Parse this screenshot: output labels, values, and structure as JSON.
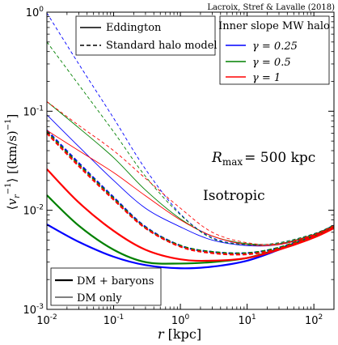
{
  "chart_data": {
    "type": "line",
    "credit": "Lacroix, Stref & Lavalle (2018)",
    "xlabel": "r [kpc]",
    "ylabel": "⟨v_r^{-1}⟩ [(km/s)^{-1}]",
    "xscale": "log",
    "yscale": "log",
    "xlim": [
      0.01,
      200
    ],
    "ylim": [
      0.001,
      1
    ],
    "x_ticks": [
      {
        "value": 0.01,
        "mantissa": "10",
        "exp": "-2"
      },
      {
        "value": 0.1,
        "mantissa": "10",
        "exp": "-1"
      },
      {
        "value": 1,
        "mantissa": "10",
        "exp": "0"
      },
      {
        "value": 10,
        "mantissa": "10",
        "exp": "1"
      },
      {
        "value": 100,
        "mantissa": "10",
        "exp": "2"
      }
    ],
    "y_ticks": [
      {
        "value": 0.001,
        "mantissa": "10",
        "exp": "-3"
      },
      {
        "value": 0.01,
        "mantissa": "10",
        "exp": "-2"
      },
      {
        "value": 0.1,
        "mantissa": "10",
        "exp": "-1"
      },
      {
        "value": 1,
        "mantissa": "10",
        "exp": "0"
      }
    ],
    "annotations": {
      "rmax": "R",
      "rmax_sub": "max",
      "rmax_value": "= 500 kpc",
      "model": "Isotropic"
    },
    "legend_method": {
      "placement": "top-left",
      "entries": [
        {
          "label": "Eddington",
          "linestyle": "solid"
        },
        {
          "label": "Standard halo model",
          "linestyle": "dashed"
        }
      ]
    },
    "legend_gamma": {
      "placement": "top-right",
      "title": "Inner slope MW halo",
      "entries": [
        {
          "label": "γ = 0.25",
          "color": "#0000ff"
        },
        {
          "label": "γ = 0.5",
          "color": "#008000"
        },
        {
          "label": "γ = 1",
          "color": "#ff0000"
        }
      ]
    },
    "legend_mass": {
      "placement": "bottom-left",
      "entries": [
        {
          "label": "DM + baryons",
          "linewidth": "thick"
        },
        {
          "label": "DM only",
          "linewidth": "thin"
        }
      ]
    },
    "series": [
      {
        "gamma": "0.25",
        "method": "Eddington",
        "mass": "DM + baryons",
        "color": "#0000ff",
        "style": "solid",
        "width": "thick",
        "x": [
          0.01,
          0.03,
          0.1,
          0.3,
          1,
          3,
          10,
          30,
          100,
          200
        ],
        "y": [
          0.0072,
          0.0048,
          0.0034,
          0.0028,
          0.0026,
          0.0027,
          0.0031,
          0.004,
          0.0055,
          0.0068
        ]
      },
      {
        "gamma": "0.5",
        "method": "Eddington",
        "mass": "DM + baryons",
        "color": "#008000",
        "style": "solid",
        "width": "thick",
        "x": [
          0.01,
          0.03,
          0.1,
          0.3,
          1,
          3,
          10,
          30,
          100,
          200
        ],
        "y": [
          0.0142,
          0.007,
          0.004,
          0.003,
          0.0029,
          0.003,
          0.0033,
          0.0041,
          0.0055,
          0.0068
        ]
      },
      {
        "gamma": "1",
        "method": "Eddington",
        "mass": "DM + baryons",
        "color": "#ff0000",
        "style": "solid",
        "width": "thick",
        "x": [
          0.01,
          0.03,
          0.1,
          0.3,
          1,
          3,
          10,
          30,
          100,
          200
        ],
        "y": [
          0.026,
          0.012,
          0.0062,
          0.004,
          0.0032,
          0.0031,
          0.0033,
          0.004,
          0.0053,
          0.0066
        ]
      },
      {
        "gamma": "0.25",
        "method": "Standard halo model",
        "mass": "DM + baryons",
        "color": "#0000ff",
        "style": "dashed",
        "width": "thick",
        "x": [
          0.01,
          0.03,
          0.1,
          0.3,
          1,
          3,
          10,
          30,
          100,
          200
        ],
        "y": [
          0.064,
          0.03,
          0.0135,
          0.0068,
          0.0044,
          0.0038,
          0.0037,
          0.0042,
          0.0056,
          0.007
        ]
      },
      {
        "gamma": "0.5",
        "method": "Standard halo model",
        "mass": "DM + baryons",
        "color": "#008000",
        "style": "dashed",
        "width": "thick",
        "x": [
          0.01,
          0.03,
          0.1,
          0.3,
          1,
          3,
          10,
          30,
          100,
          200
        ],
        "y": [
          0.062,
          0.029,
          0.0132,
          0.0067,
          0.0044,
          0.0038,
          0.0037,
          0.0042,
          0.0056,
          0.007
        ]
      },
      {
        "gamma": "1",
        "method": "Standard halo model",
        "mass": "DM + baryons",
        "color": "#ff0000",
        "style": "dashed",
        "width": "thick",
        "x": [
          0.01,
          0.03,
          0.1,
          0.3,
          1,
          3,
          10,
          30,
          100,
          200
        ],
        "y": [
          0.06,
          0.028,
          0.0128,
          0.0066,
          0.0043,
          0.0037,
          0.0036,
          0.0041,
          0.0055,
          0.0069
        ]
      },
      {
        "gamma": "0.25",
        "method": "Eddington",
        "mass": "DM only",
        "color": "#0000ff",
        "style": "solid",
        "width": "thin",
        "x": [
          0.01,
          0.03,
          0.1,
          0.3,
          1,
          3,
          10,
          30,
          100,
          200
        ],
        "y": [
          0.092,
          0.044,
          0.02,
          0.0105,
          0.0068,
          0.005,
          0.0044,
          0.0045,
          0.0057,
          0.007
        ]
      },
      {
        "gamma": "0.5",
        "method": "Eddington",
        "mass": "DM only",
        "color": "#008000",
        "style": "solid",
        "width": "thin",
        "x": [
          0.01,
          0.03,
          0.1,
          0.3,
          1,
          3,
          10,
          30,
          100,
          200
        ],
        "y": [
          0.125,
          0.068,
          0.034,
          0.016,
          0.0082,
          0.0055,
          0.0046,
          0.0046,
          0.0057,
          0.007
        ]
      },
      {
        "gamma": "1",
        "method": "Eddington",
        "mass": "DM only",
        "color": "#ff0000",
        "style": "solid",
        "width": "thin",
        "x": [
          0.01,
          0.03,
          0.1,
          0.3,
          1,
          3,
          10,
          30,
          100,
          200
        ],
        "y": [
          0.064,
          0.04,
          0.024,
          0.014,
          0.008,
          0.0055,
          0.0045,
          0.0045,
          0.0056,
          0.0069
        ]
      },
      {
        "gamma": "0.25",
        "method": "Standard halo model",
        "mass": "DM only",
        "color": "#0000ff",
        "style": "dashed",
        "width": "thin",
        "x": [
          0.01,
          0.03,
          0.1,
          0.3,
          1,
          3,
          10,
          30,
          100,
          200
        ],
        "y": [
          0.98,
          0.3,
          0.085,
          0.026,
          0.0092,
          0.0053,
          0.0045,
          0.0047,
          0.0058,
          0.0071
        ]
      },
      {
        "gamma": "0.5",
        "method": "Standard halo model",
        "mass": "DM only",
        "color": "#008000",
        "style": "dashed",
        "width": "thin",
        "x": [
          0.01,
          0.03,
          0.1,
          0.3,
          1,
          3,
          10,
          30,
          100,
          200
        ],
        "y": [
          0.5,
          0.185,
          0.062,
          0.022,
          0.009,
          0.0052,
          0.0045,
          0.0047,
          0.0058,
          0.0071
        ]
      },
      {
        "gamma": "1",
        "method": "Standard halo model",
        "mass": "DM only",
        "color": "#ff0000",
        "style": "dashed",
        "width": "thin",
        "x": [
          0.01,
          0.03,
          0.1,
          0.3,
          1,
          3,
          10,
          30,
          100,
          200
        ],
        "y": [
          0.125,
          0.072,
          0.04,
          0.021,
          0.0105,
          0.006,
          0.0047,
          0.0046,
          0.0057,
          0.007
        ]
      }
    ]
  }
}
